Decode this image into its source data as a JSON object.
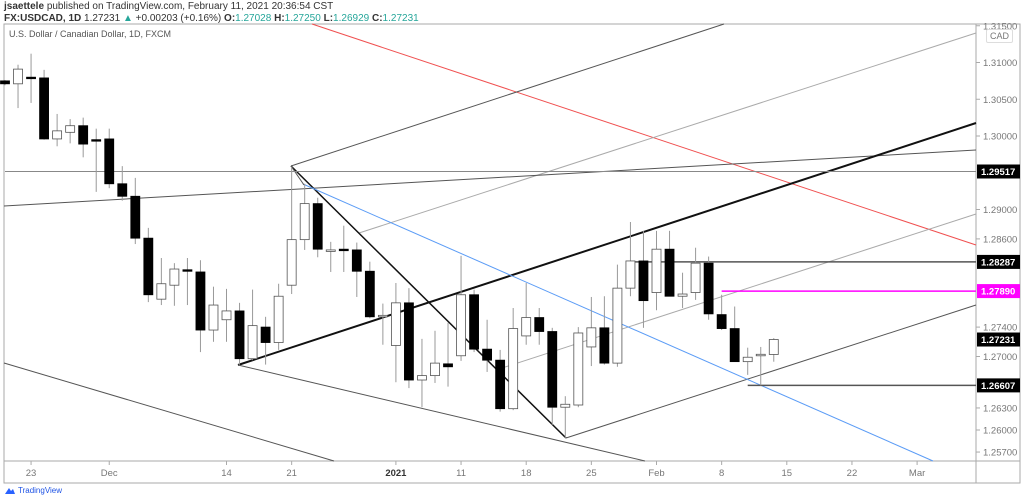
{
  "header": {
    "author": "jsaettele",
    "published_text": "published on TradingView.com, February 11, 2021 20:36:54 CST",
    "symbol": "FX:USDCAD, 1D",
    "last": "1.27231",
    "direction_icon": "triangle-up-icon",
    "change": "+0.00203 (+0.16%)",
    "o_label": "O:",
    "o": "1.27028",
    "h_label": "H:",
    "h": "1.27250",
    "l_label": "L:",
    "l": "1.26929",
    "c_label": "C:",
    "c": "1.27231"
  },
  "legend": "U.S. Dollar / Canadian Dollar, 1D, FXCM",
  "currency_label": "CAD",
  "footer": {
    "brand": "TradingView"
  },
  "colors": {
    "up_value": "#26a69a",
    "support_line": "#ff00ff",
    "red_line": "#f05050",
    "blue_line": "#5b9cf6"
  },
  "chart_data": {
    "type": "candlestick",
    "symbol": "USDCAD",
    "timeframe": "1D",
    "candle_fields": [
      "date",
      "open",
      "high",
      "low",
      "close"
    ],
    "candles": [
      [
        "2020-11-19",
        1.3075,
        1.3076,
        1.3069,
        1.3071
      ],
      [
        "2020-11-20",
        1.3071,
        1.3097,
        1.3038,
        1.3091
      ],
      [
        "2020-11-23",
        1.308,
        1.3112,
        1.3045,
        1.3079
      ],
      [
        "2020-11-24",
        1.3079,
        1.309,
        1.2995,
        1.2996
      ],
      [
        "2020-11-25",
        1.2996,
        1.303,
        1.2986,
        1.3007
      ],
      [
        "2020-11-26",
        1.3005,
        1.3023,
        1.299,
        1.3014
      ],
      [
        "2020-11-27",
        1.3014,
        1.3025,
        1.2971,
        1.2989
      ],
      [
        "2020-11-30",
        1.2995,
        1.301,
        1.2924,
        1.2994
      ],
      [
        "2020-12-01",
        1.2996,
        1.301,
        1.2929,
        1.2935
      ],
      [
        "2020-12-02",
        1.2935,
        1.2959,
        1.2912,
        1.2918
      ],
      [
        "2020-12-03",
        1.2918,
        1.2943,
        1.2853,
        1.2861
      ],
      [
        "2020-12-04",
        1.2861,
        1.2875,
        1.2774,
        1.2784
      ],
      [
        "2020-12-07",
        1.2778,
        1.2834,
        1.277,
        1.2799
      ],
      [
        "2020-12-08",
        1.2797,
        1.2827,
        1.2769,
        1.2819
      ],
      [
        "2020-12-09",
        1.2818,
        1.2834,
        1.277,
        1.2817
      ],
      [
        "2020-12-10",
        1.2815,
        1.2831,
        1.2706,
        1.2736
      ],
      [
        "2020-12-11",
        1.2736,
        1.2795,
        1.272,
        1.277
      ],
      [
        "2020-12-14",
        1.275,
        1.2792,
        1.272,
        1.2762
      ],
      [
        "2020-12-15",
        1.2762,
        1.2773,
        1.2689,
        1.2697
      ],
      [
        "2020-12-16",
        1.2697,
        1.2791,
        1.2695,
        1.2742
      ],
      [
        "2020-12-17",
        1.274,
        1.2754,
        1.2689,
        1.2719
      ],
      [
        "2020-12-18",
        1.2719,
        1.2799,
        1.2709,
        1.2782
      ],
      [
        "2020-12-21",
        1.2797,
        1.2958,
        1.2785,
        1.2859
      ],
      [
        "2020-12-22",
        1.2859,
        1.2935,
        1.2845,
        1.2908
      ],
      [
        "2020-12-23",
        1.2908,
        1.2916,
        1.2835,
        1.2846
      ],
      [
        "2020-12-24",
        1.2845,
        1.2856,
        1.2815,
        1.2845
      ],
      [
        "2020-12-28",
        1.2846,
        1.2878,
        1.2815,
        1.2845
      ],
      [
        "2020-12-29",
        1.2845,
        1.2855,
        1.2781,
        1.2816
      ],
      [
        "2020-12-30",
        1.2816,
        1.2829,
        1.2752,
        1.2754
      ],
      [
        "2020-12-31",
        1.2755,
        1.2772,
        1.2716,
        1.2756
      ],
      [
        "2021-01-04",
        1.2715,
        1.28,
        1.2665,
        1.2773
      ],
      [
        "2021-01-05",
        1.2773,
        1.2793,
        1.2657,
        1.2668
      ],
      [
        "2021-01-06",
        1.2668,
        1.2724,
        1.2631,
        1.2674
      ],
      [
        "2021-01-07",
        1.2674,
        1.2735,
        1.2664,
        1.2691
      ],
      [
        "2021-01-08",
        1.269,
        1.2746,
        1.2659,
        1.2686
      ],
      [
        "2021-01-11",
        1.2701,
        1.2837,
        1.2694,
        1.2784
      ],
      [
        "2021-01-12",
        1.2784,
        1.2791,
        1.2706,
        1.271
      ],
      [
        "2021-01-13",
        1.271,
        1.275,
        1.2679,
        1.2695
      ],
      [
        "2021-01-14",
        1.2695,
        1.2709,
        1.2625,
        1.2629
      ],
      [
        "2021-01-15",
        1.2629,
        1.2766,
        1.2627,
        1.2738
      ],
      [
        "2021-01-18",
        1.2728,
        1.28,
        1.2716,
        1.2753
      ],
      [
        "2021-01-19",
        1.2753,
        1.2766,
        1.2716,
        1.2734
      ],
      [
        "2021-01-20",
        1.2734,
        1.2739,
        1.2607,
        1.2631
      ],
      [
        "2021-01-21",
        1.2631,
        1.2646,
        1.2589,
        1.2635
      ],
      [
        "2021-01-22",
        1.2634,
        1.274,
        1.2631,
        1.2732
      ],
      [
        "2021-01-25",
        1.2713,
        1.2781,
        1.2687,
        1.2739
      ],
      [
        "2021-01-26",
        1.2739,
        1.2782,
        1.2689,
        1.2691
      ],
      [
        "2021-01-27",
        1.2691,
        1.2825,
        1.2686,
        1.2793
      ],
      [
        "2021-01-28",
        1.2793,
        1.2883,
        1.2782,
        1.283
      ],
      [
        "2021-01-29",
        1.283,
        1.2871,
        1.2739,
        1.2776
      ],
      [
        "2021-02-01",
        1.2787,
        1.2871,
        1.2763,
        1.2846
      ],
      [
        "2021-02-02",
        1.2846,
        1.2871,
        1.2782,
        1.2782
      ],
      [
        "2021-02-03",
        1.2782,
        1.2814,
        1.2766,
        1.2785
      ],
      [
        "2021-02-04",
        1.2787,
        1.2848,
        1.2777,
        1.2827
      ],
      [
        "2021-02-05",
        1.2827,
        1.2836,
        1.275,
        1.2758
      ],
      [
        "2021-02-08",
        1.2757,
        1.2784,
        1.2736,
        1.2738
      ],
      [
        "2021-02-09",
        1.2738,
        1.2768,
        1.2693,
        1.2693
      ],
      [
        "2021-02-10",
        1.2693,
        1.2712,
        1.2675,
        1.2699
      ],
      [
        "2021-02-11",
        1.2701,
        1.2713,
        1.26607,
        1.2703
      ],
      [
        "2021-02-12",
        1.27028,
        1.2725,
        1.26929,
        1.27231
      ]
    ],
    "y_ticks": [
      "1.31500",
      "1.31000",
      "1.30500",
      "1.30000",
      "1.29000",
      "1.28600",
      "1.27400",
      "1.27000",
      "1.26300",
      "1.26000",
      "1.25700"
    ],
    "x_ticks": [
      {
        "label": "23",
        "date": "2020-11-23"
      },
      {
        "label": "Dec",
        "date": "2020-12-01"
      },
      {
        "label": "14",
        "date": "2020-12-14"
      },
      {
        "label": "21",
        "date": "2020-12-21"
      },
      {
        "label": "2021",
        "date": "2021-01-04",
        "bold": true
      },
      {
        "label": "11",
        "date": "2021-01-11"
      },
      {
        "label": "18",
        "date": "2021-01-18"
      },
      {
        "label": "25",
        "date": "2021-01-25"
      },
      {
        "label": "Feb",
        "date": "2021-02-01"
      },
      {
        "label": "8",
        "date": "2021-02-08"
      },
      {
        "label": "15",
        "date": "2021-02-15"
      },
      {
        "label": "22",
        "date": "2021-02-22"
      },
      {
        "label": "Mar",
        "date": "2021-03-01"
      }
    ],
    "price_levels": [
      {
        "label": "1.29517",
        "value": 1.29517,
        "line_color": "#888888",
        "from_date": "2020-11-19"
      },
      {
        "label": "1.28287",
        "value": 1.28287,
        "line_color": "#555555",
        "from_date": "2021-01-28"
      },
      {
        "label": "1.27890",
        "value": 1.2789,
        "line_color": "#ff00ff",
        "label_bg": "#ff00ff",
        "from_date": "2021-02-08"
      },
      {
        "label": "1.26607",
        "value": 1.26607,
        "line_color": "#555555",
        "from_date": "2021-02-10"
      }
    ],
    "last_price": {
      "label": "1.27231",
      "value": 1.27231
    },
    "y_range": [
      1.2545,
      1.316
    ],
    "grid": false
  }
}
